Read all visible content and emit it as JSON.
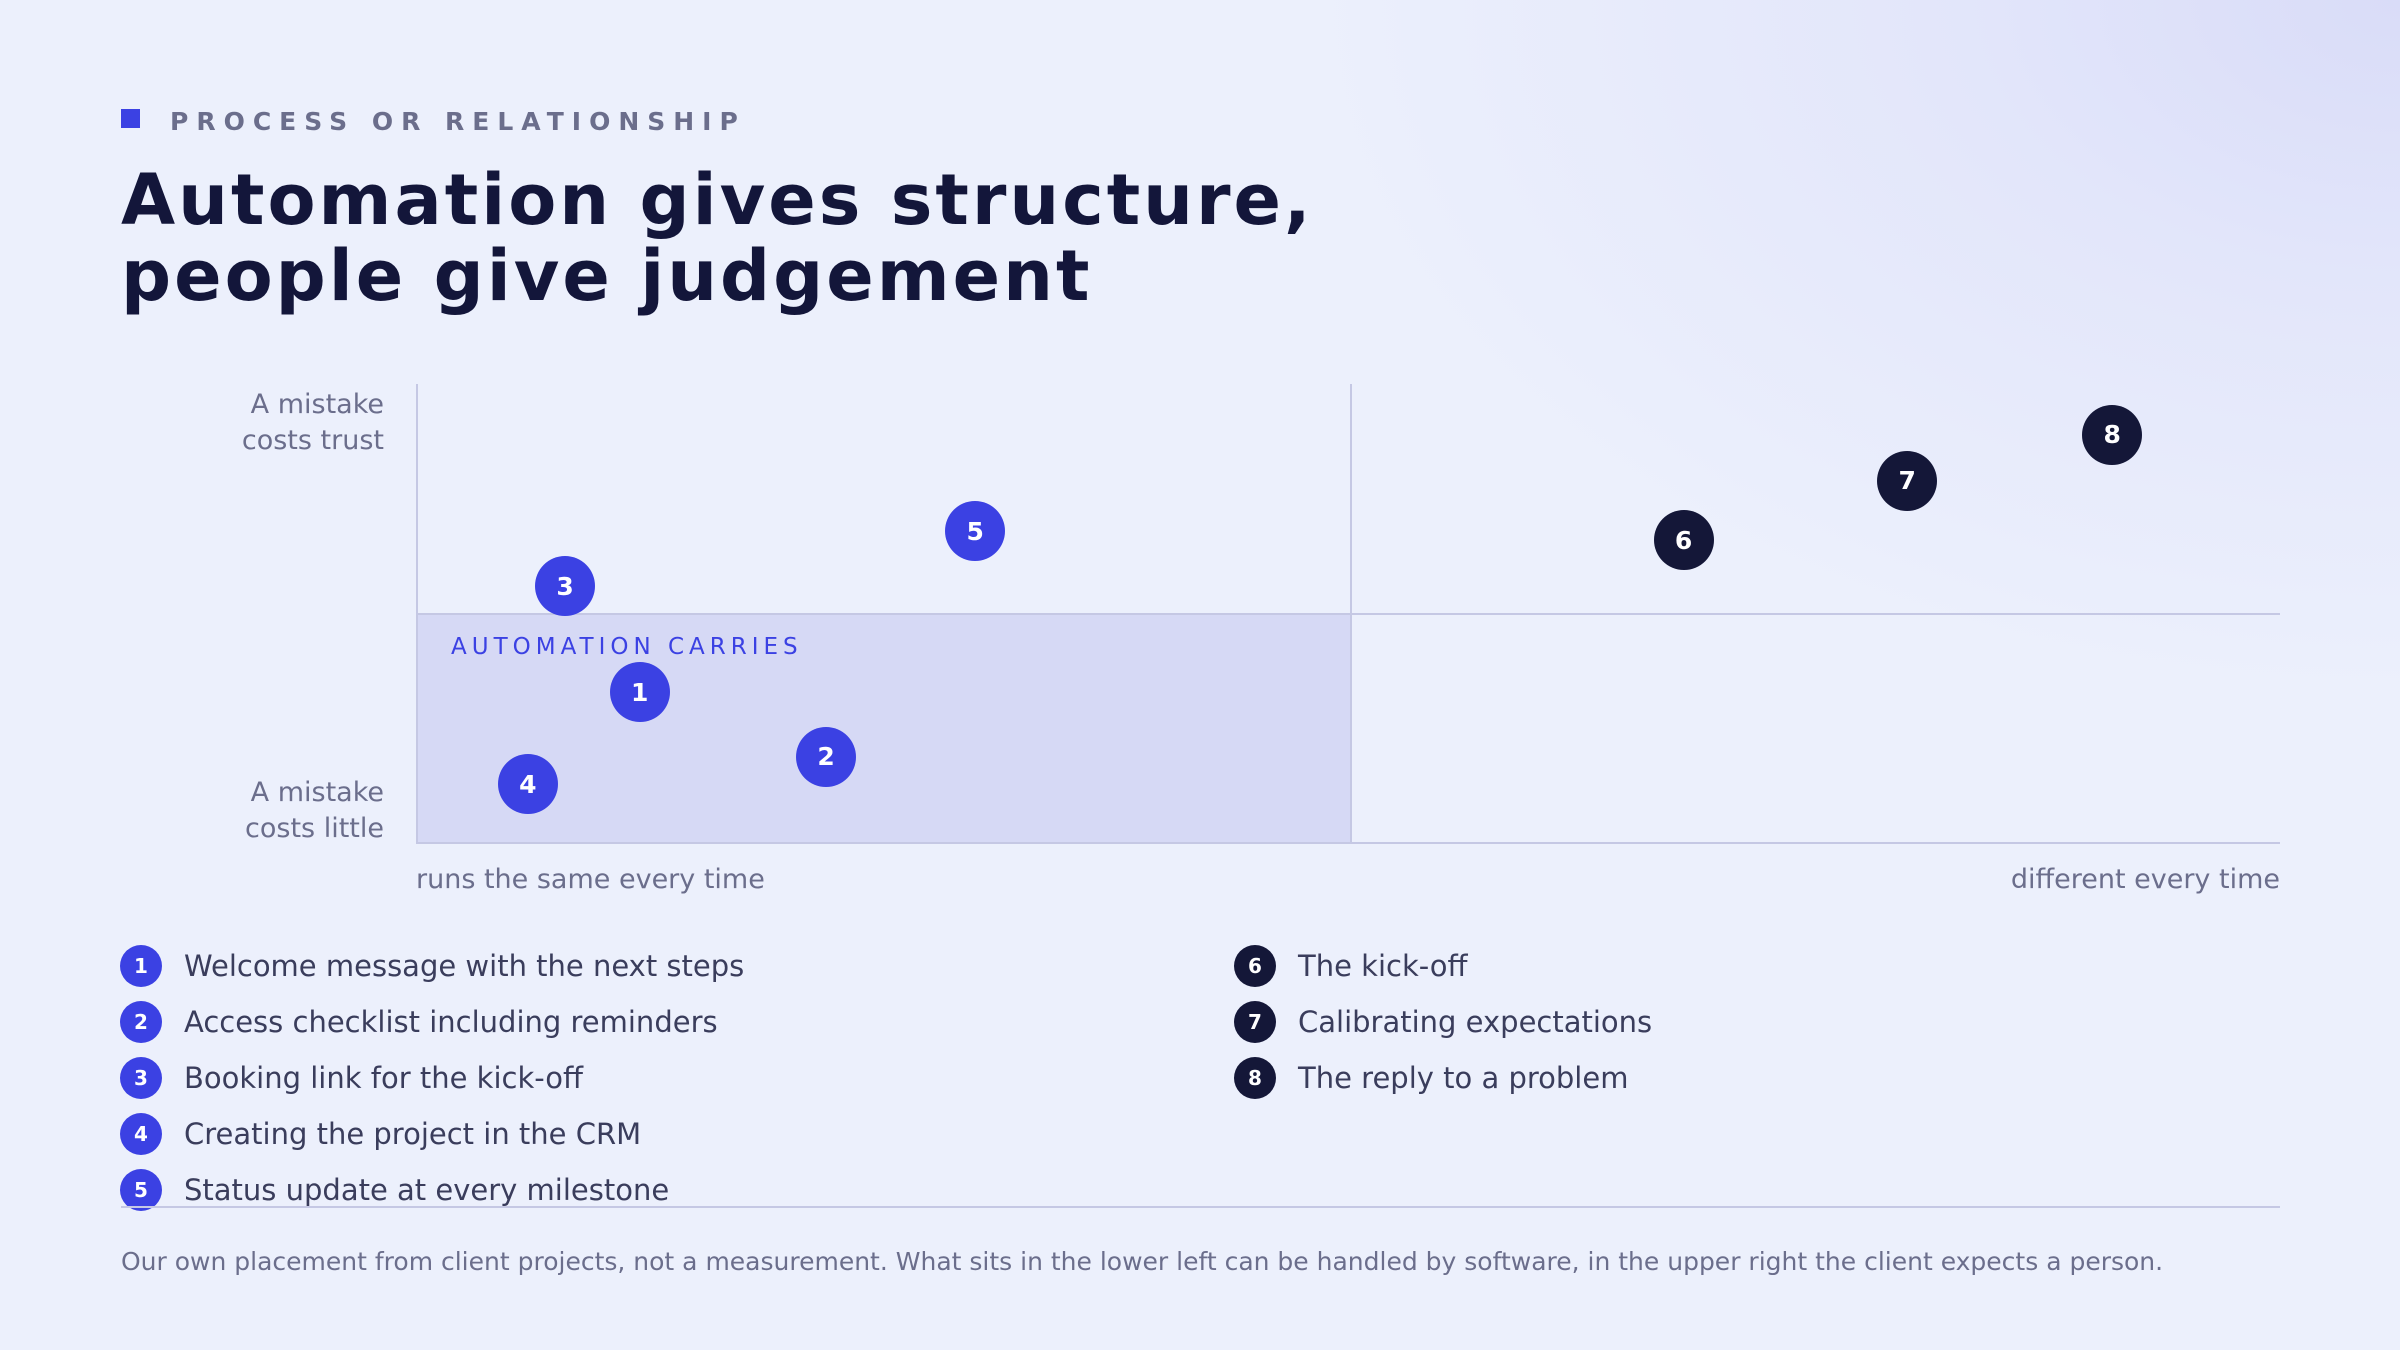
{
  "eyebrow": "PROCESS OR RELATIONSHIP",
  "title": [
    "Automation gives structure,",
    "people give judgement"
  ],
  "chart_data": {
    "type": "scatter",
    "y_axis": {
      "top_label": [
        "A mistake",
        "costs trust"
      ],
      "bottom_label": [
        "A mistake",
        "costs little"
      ]
    },
    "x_axis": {
      "left_label": "runs the same every time",
      "right_label": "different every time"
    },
    "quadrant_label": "AUTOMATION CARRIES",
    "xlim": [
      0,
      1
    ],
    "ylim": [
      0,
      1
    ],
    "points": [
      {
        "id": "1",
        "x": 0.12,
        "y": 0.33,
        "group": "automation"
      },
      {
        "id": "2",
        "x": 0.22,
        "y": 0.19,
        "group": "automation"
      },
      {
        "id": "3",
        "x": 0.08,
        "y": 0.56,
        "group": "automation"
      },
      {
        "id": "4",
        "x": 0.06,
        "y": 0.13,
        "group": "automation"
      },
      {
        "id": "5",
        "x": 0.3,
        "y": 0.68,
        "group": "automation"
      },
      {
        "id": "6",
        "x": 0.68,
        "y": 0.66,
        "group": "people"
      },
      {
        "id": "7",
        "x": 0.8,
        "y": 0.79,
        "group": "people"
      },
      {
        "id": "8",
        "x": 0.91,
        "y": 0.89,
        "group": "people"
      }
    ]
  },
  "legend": [
    {
      "id": "1",
      "label": "Welcome message with the next steps",
      "group": "automation"
    },
    {
      "id": "2",
      "label": "Access checklist including reminders",
      "group": "automation"
    },
    {
      "id": "3",
      "label": "Booking link for the kick-off",
      "group": "automation"
    },
    {
      "id": "4",
      "label": "Creating the project in the CRM",
      "group": "automation"
    },
    {
      "id": "5",
      "label": "Status update at every milestone",
      "group": "automation"
    },
    {
      "id": "6",
      "label": "The kick-off",
      "group": "people"
    },
    {
      "id": "7",
      "label": "Calibrating expectations",
      "group": "people"
    },
    {
      "id": "8",
      "label": "The reply to a problem",
      "group": "people"
    }
  ],
  "footnote": "Our own placement from client projects, not a measurement. What sits in the lower left can be handled by software, in the upper right the client expects a person.",
  "colors": {
    "automation": "#3b41e3",
    "people": "#141738",
    "quadrant_fill": "#d6d9f5"
  }
}
